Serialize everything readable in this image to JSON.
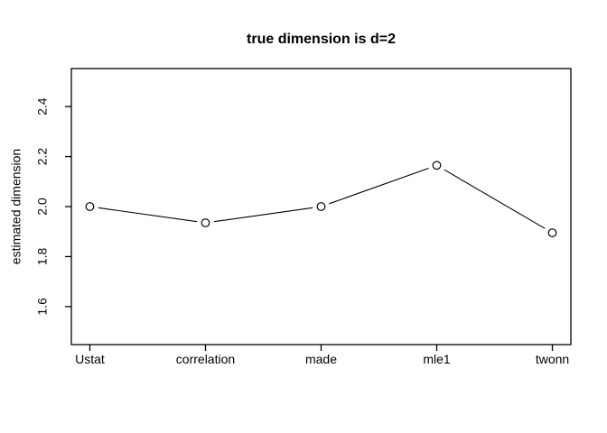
{
  "chart_data": {
    "type": "line",
    "title": "true dimension is d=2",
    "xlabel": "",
    "ylabel": "estimated dimension",
    "categories": [
      "Ustat",
      "correlation",
      "made",
      "mle1",
      "twonn"
    ],
    "values": [
      2.0,
      1.935,
      2.0,
      2.165,
      1.895
    ],
    "yticks": [
      "1.6",
      "1.8",
      "2.0",
      "2.2",
      "2.4"
    ],
    "ylim": [
      1.448,
      2.552
    ],
    "grid": false,
    "legend": false,
    "marker": "open-circle",
    "line_color": "#000000",
    "marker_fill": "#ffffff",
    "background": "#ffffff"
  }
}
